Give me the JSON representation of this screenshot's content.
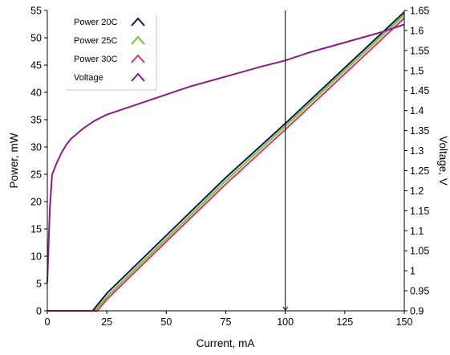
{
  "chart_data": {
    "type": "line",
    "xlabel": "Current, mA",
    "ylabel_left": "Power, mW",
    "ylabel_right": "Voltage, V",
    "xlim": [
      0,
      150
    ],
    "ylim_left": [
      0,
      55
    ],
    "ylim_right": [
      0.9,
      1.65
    ],
    "x_ticks": [
      0,
      25,
      50,
      75,
      100,
      125,
      150
    ],
    "y_left_ticks": [
      0,
      5,
      10,
      15,
      20,
      25,
      30,
      35,
      40,
      45,
      50,
      55
    ],
    "y_right_ticks": [
      0.9,
      0.95,
      1,
      1.05,
      1.1,
      1.15,
      1.2,
      1.25,
      1.3,
      1.35,
      1.4,
      1.45,
      1.5,
      1.55,
      1.6,
      1.65
    ],
    "y_right_tick_labels": [
      "0.9",
      "0.95",
      "1",
      "1.05",
      "1.1",
      "1.15",
      "1.2",
      "1.25",
      "1.3",
      "1.35",
      "1.4",
      "1.45",
      "1.5",
      "1.55",
      "1.6",
      "1.65"
    ],
    "grid": false,
    "legend_position": "top-left",
    "cursor_x": 100,
    "series": [
      {
        "name": "Power 20C",
        "axis": "left",
        "color": "#0a1a4a",
        "x": [
          0,
          19,
          25,
          50,
          75,
          100,
          125,
          150
        ],
        "y": [
          0,
          0,
          3.2,
          13.8,
          24.4,
          34.3,
          44.5,
          54.7
        ]
      },
      {
        "name": "Power 25C",
        "axis": "left",
        "color": "#6dc12a",
        "x": [
          0,
          20,
          25,
          50,
          75,
          100,
          125,
          150
        ],
        "y": [
          0,
          0,
          2.6,
          13.2,
          23.8,
          33.8,
          44.0,
          54.2
        ]
      },
      {
        "name": "Power 30C",
        "axis": "left",
        "color": "#e0306e",
        "x": [
          0,
          21,
          25,
          50,
          75,
          100,
          125,
          150
        ],
        "y": [
          0,
          0,
          2.1,
          12.7,
          23.2,
          33.2,
          43.4,
          53.6
        ]
      },
      {
        "name": "Voltage",
        "axis": "right",
        "color": "#8b1a8b",
        "x": [
          0,
          1,
          2,
          4,
          6,
          8,
          10,
          15,
          20,
          25,
          30,
          40,
          50,
          60,
          75,
          90,
          100,
          110,
          125,
          140,
          150
        ],
        "y": [
          0.97,
          1.15,
          1.24,
          1.27,
          1.295,
          1.315,
          1.33,
          1.355,
          1.375,
          1.39,
          1.4,
          1.42,
          1.44,
          1.46,
          1.485,
          1.51,
          1.525,
          1.545,
          1.57,
          1.595,
          1.615
        ]
      }
    ]
  }
}
